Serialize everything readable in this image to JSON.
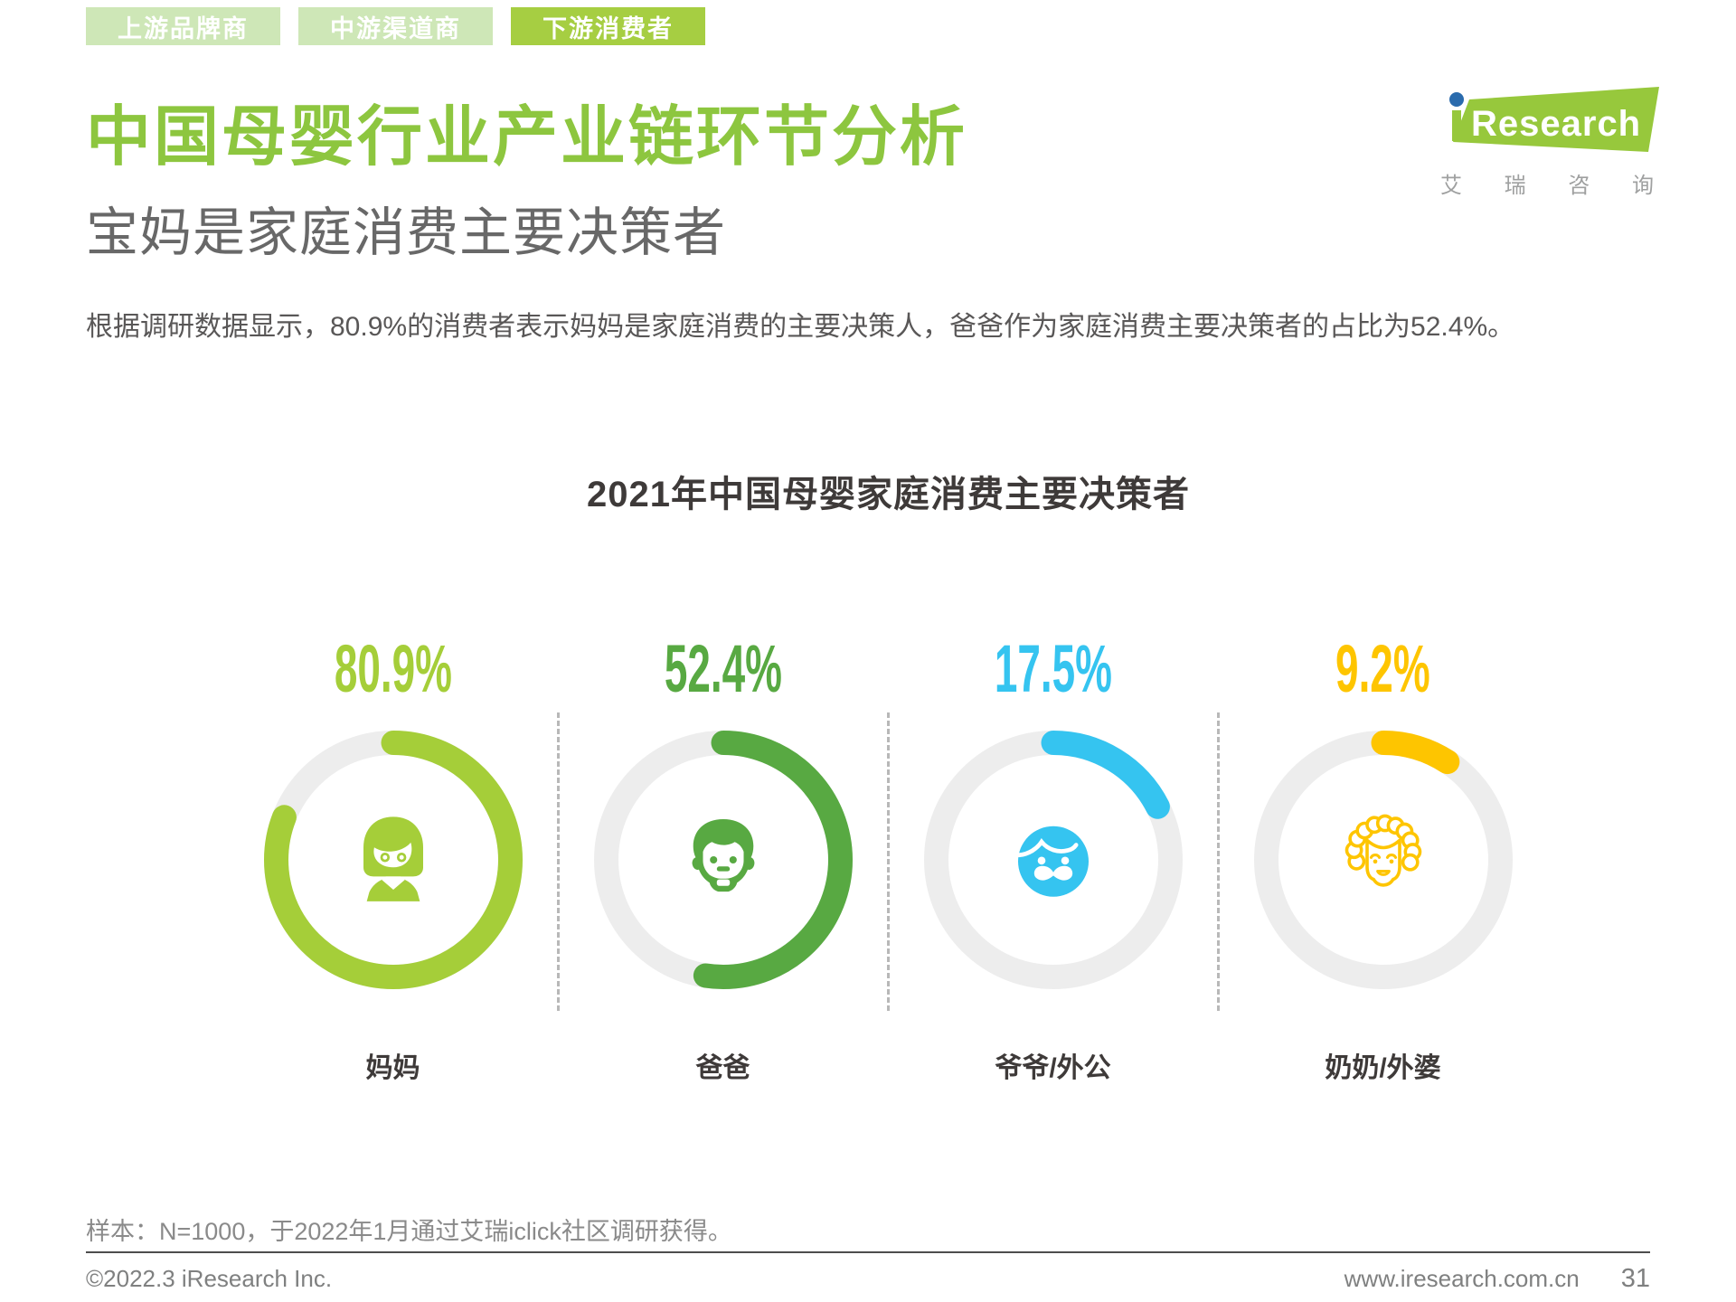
{
  "tabs": [
    {
      "label": "上游品牌商",
      "active": false
    },
    {
      "label": "中游渠道商",
      "active": false
    },
    {
      "label": "下游消费者",
      "active": true
    }
  ],
  "logo": {
    "brand_i": "i",
    "brand_rest": "Research",
    "chinese_name": "艾瑞咨询"
  },
  "header": {
    "title": "中国母婴行业产业链环节分析",
    "subtitle": "宝妈是家庭消费主要决策者",
    "description": "根据调研数据显示，80.9%的消费者表示妈妈是家庭消费的主要决策人，爸爸作为家庭消费主要决策者的占比为52.4%。"
  },
  "chart_data": {
    "type": "pie",
    "variant": "donut-gauge-group",
    "title": "2021年中国母婴家庭消费主要决策者",
    "categories": [
      "妈妈",
      "爸爸",
      "爷爷/外公",
      "奶奶/外婆"
    ],
    "values": [
      80.9,
      52.4,
      17.5,
      9.2
    ],
    "unit": "%",
    "colors": [
      "#a5ce39",
      "#58a942",
      "#35c4f0",
      "#fec500"
    ],
    "track_color": "#ededed",
    "icons": [
      "mom-icon",
      "dad-icon",
      "grandpa-icon",
      "grandma-icon"
    ],
    "legend_position": "below",
    "ylim": [
      0,
      100
    ]
  },
  "palette": {
    "accent_green": "#8dc63f",
    "tab_inactive_bg": "#cee7b7",
    "tab_active_bg": "#a6ce42",
    "heading_gray": "#686868",
    "body_gray": "#595757",
    "chart_title_color": "#3e3a39",
    "footer_gray": "#7f8080",
    "divider_color": "#4d4d4d",
    "dash_color": "#b8b8b8",
    "logo_green": "#97c83c",
    "logo_blue": "#2a6bad"
  },
  "footer": {
    "sample_note": "样本：N=1000，于2022年1月通过艾瑞iclick社区调研获得。",
    "copyright": "©2022.3 iResearch Inc.",
    "website": "www.iresearch.com.cn",
    "page_number": "31"
  }
}
